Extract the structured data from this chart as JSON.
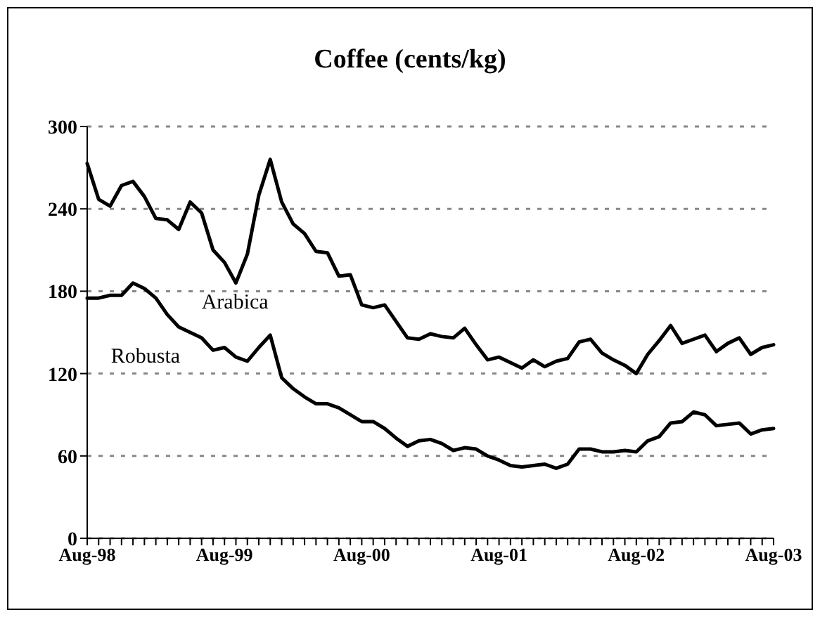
{
  "chart_data": {
    "type": "line",
    "title": "Coffee (cents/kg)",
    "categories": [
      "Aug-98",
      null,
      null,
      null,
      null,
      null,
      null,
      null,
      null,
      null,
      null,
      null,
      "Aug-99",
      null,
      null,
      null,
      null,
      null,
      null,
      null,
      null,
      null,
      null,
      null,
      "Aug-00",
      null,
      null,
      null,
      null,
      null,
      null,
      null,
      null,
      null,
      null,
      null,
      "Aug-01",
      null,
      null,
      null,
      null,
      null,
      null,
      null,
      null,
      null,
      null,
      null,
      "Aug-02",
      null,
      null,
      null,
      null,
      null,
      null,
      null,
      null,
      null,
      null,
      null,
      "Aug-03"
    ],
    "series": [
      {
        "name": "Arabica",
        "color": "#000000",
        "values": [
          273,
          247,
          242,
          257,
          260,
          249,
          233,
          232,
          225,
          245,
          237,
          210,
          201,
          186,
          207,
          250,
          276,
          245,
          229,
          222,
          209,
          208,
          191,
          192,
          170,
          168,
          170,
          158,
          146,
          145,
          149,
          147,
          146,
          153,
          141,
          130,
          132,
          128,
          124,
          130,
          125,
          129,
          131,
          143,
          145,
          135,
          130,
          126,
          120,
          134,
          144,
          155,
          142,
          145,
          148,
          136,
          142,
          146,
          134,
          139,
          141
        ]
      },
      {
        "name": "Robusta",
        "color": "#000000",
        "values": [
          175,
          175,
          177,
          177,
          186,
          182,
          175,
          163,
          154,
          150,
          146,
          137,
          139,
          132,
          129,
          139,
          148,
          117,
          109,
          103,
          98,
          98,
          95,
          90,
          85,
          85,
          80,
          73,
          67,
          71,
          72,
          69,
          64,
          66,
          65,
          60,
          57,
          53,
          52,
          53,
          54,
          51,
          54,
          65,
          65,
          63,
          63,
          64,
          63,
          71,
          74,
          84,
          85,
          92,
          90,
          82,
          83,
          84,
          76,
          79,
          80
        ]
      }
    ],
    "ylim": [
      0,
      300
    ],
    "yticks": [
      0,
      60,
      120,
      180,
      240,
      300
    ],
    "grid": "y",
    "line_style": "solid",
    "marker": "none"
  }
}
